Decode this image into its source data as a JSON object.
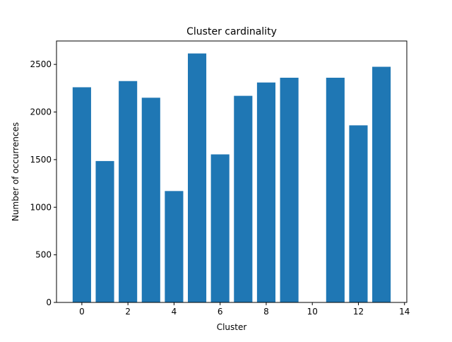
{
  "chart_data": {
    "type": "bar",
    "title": "Cluster cardinality",
    "xlabel": "Cluster",
    "ylabel": "Number of occurrences",
    "x": [
      0,
      1,
      2,
      3,
      4,
      5,
      6,
      7,
      8,
      9,
      10,
      11,
      12,
      13
    ],
    "values": [
      2260,
      1485,
      2325,
      2150,
      1170,
      2615,
      1555,
      2170,
      2310,
      2360,
      0,
      2360,
      1860,
      2475
    ],
    "xlim": [
      -1.1,
      14.1
    ],
    "ylim": [
      0,
      2746
    ],
    "xticks": [
      0,
      2,
      4,
      6,
      8,
      10,
      12,
      14
    ],
    "yticks": [
      0,
      500,
      1000,
      1500,
      2000,
      2500
    ],
    "grid": false,
    "legend": "none",
    "bar_color": "#1f77b4"
  }
}
